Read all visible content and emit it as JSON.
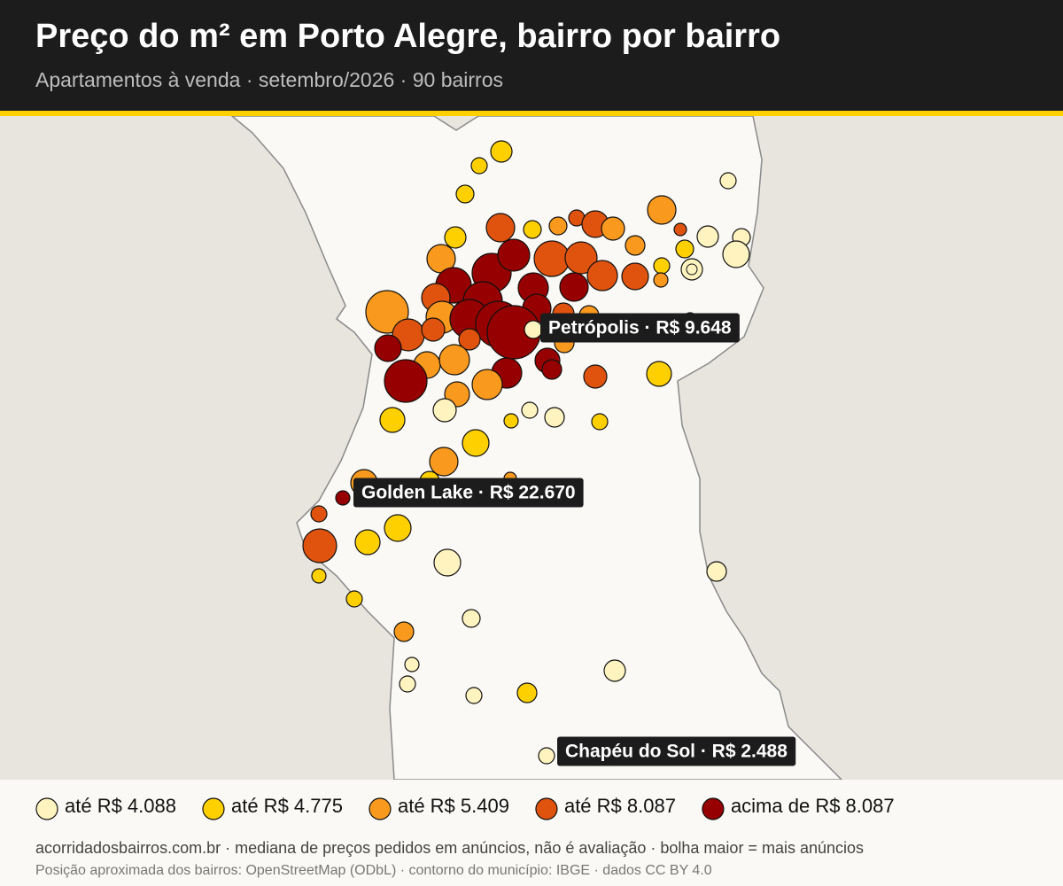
{
  "header": {
    "title": "Preço do m² em Porto Alegre, bairro por bairro",
    "subtitle": "Apartamentos à venda · setembro/2026 · 90 bairros"
  },
  "annotations": [
    "Petrópolis · R$ 9.648",
    "Golden Lake · R$ 22.670",
    "Chapéu do Sol · R$ 2.488"
  ],
  "legend": [
    {
      "label": "até R$ 4.088",
      "color": "#fff3bf"
    },
    {
      "label": "até R$ 4.775",
      "color": "#ffd000"
    },
    {
      "label": "até R$ 5.409",
      "color": "#f99a1f"
    },
    {
      "label": "até R$ 8.087",
      "color": "#e0530f"
    },
    {
      "label": "acima de R$ 8.087",
      "color": "#960000"
    }
  ],
  "footer": {
    "note": "acorridadosbairros.com.br · mediana de preços pedidos em anúncios, não é avaliação · bolha maior = mais anúncios",
    "source": "Posição aproximada dos bairros: OpenStreetMap (ODbL) · contorno do município: IBGE · dados CC BY 4.0"
  }
}
